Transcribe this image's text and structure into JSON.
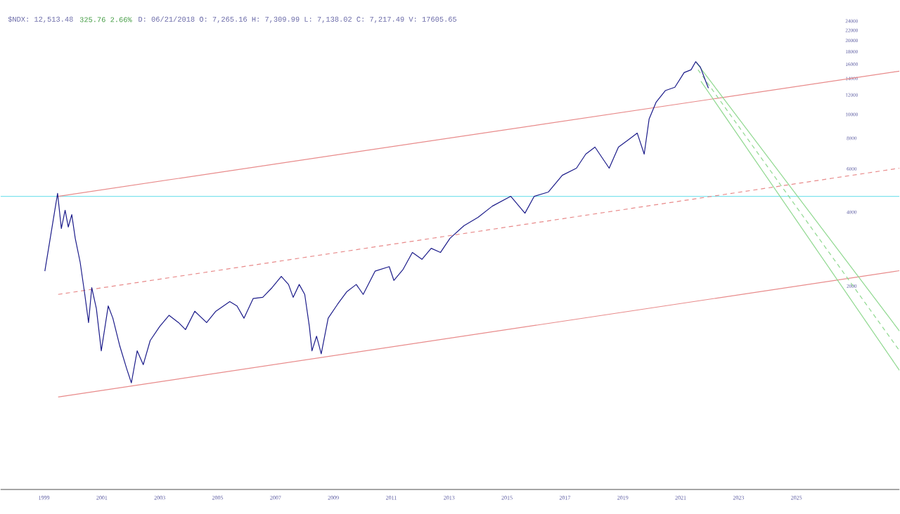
{
  "chart_data": {
    "type": "line",
    "title": "$NDX: 12,513.48",
    "subtitle": "325.76 2.66%",
    "annotations": [
      "D: 06/21/2018 O: 7,265.16 H: 7,309.99 L: 7,138.02 C: 7,217.49 V: 17605.65"
    ],
    "log": true,
    "xlim": [
      1997.5,
      2028.56
    ],
    "ylim": [
      297,
      24000
    ],
    "xticks": [
      1999,
      2001,
      2003,
      2005,
      2007,
      2009,
      2011,
      2013,
      2015,
      2017,
      2019,
      2021,
      2023,
      2025
    ],
    "yticks": [
      2000,
      4000,
      6000,
      8000,
      10000,
      12000,
      14000,
      16000,
      18000,
      20000,
      22000,
      24000
    ],
    "ref_lines": [
      {
        "axis": "y",
        "value": 4640,
        "color": "#7fe3ee"
      }
    ],
    "series": [
      {
        "color": "#e88a8a",
        "x": [
          1999.49,
          2028.56
        ],
        "values": [
          4640,
          15000
        ]
      },
      {
        "color": "#e88a8a",
        "line_style": "dashed",
        "x": [
          1999.49,
          2028.56
        ],
        "values": [
          1850,
          6040
        ]
      },
      {
        "color": "#e88a8a",
        "x": [
          1999.49,
          2028.56
        ],
        "values": [
          707,
          2310
        ]
      },
      {
        "color": "#8fd88f",
        "x": [
          2021.52,
          2028.56
        ],
        "values": [
          16400,
          1313
        ]
      },
      {
        "color": "#8fd88f",
        "line_style": "dashed",
        "x": [
          2021.6,
          2028.56
        ],
        "values": [
          15200,
          1092
        ]
      },
      {
        "color": "#8fd88f",
        "x": [
          2021.7,
          2028.56
        ],
        "values": [
          13650,
          908
        ]
      },
      {
        "color": "#1c1c8a",
        "x": [
          1999.03,
          1999.19,
          1999.47,
          1999.6,
          1999.73,
          1999.84,
          1999.96,
          2000.08,
          2000.25,
          2000.41,
          2000.54,
          2000.65,
          2000.81,
          2000.98,
          2001.22,
          2001.38,
          2001.62,
          2001.86,
          2002.02,
          2002.22,
          2002.43,
          2002.67,
          2003.0,
          2003.32,
          2003.65,
          2003.89,
          2004.21,
          2004.62,
          2004.94,
          2005.42,
          2005.67,
          2005.91,
          2006.23,
          2006.56,
          2006.88,
          2007.2,
          2007.45,
          2007.61,
          2007.82,
          2008.01,
          2008.17,
          2008.26,
          2008.42,
          2008.58,
          2008.82,
          2009.15,
          2009.47,
          2009.79,
          2010.03,
          2010.44,
          2010.93,
          2011.09,
          2011.41,
          2011.73,
          2012.06,
          2012.38,
          2012.7,
          2013.03,
          2013.51,
          2014.0,
          2014.49,
          2015.13,
          2015.62,
          2015.94,
          2016.43,
          2016.91,
          2017.4,
          2017.72,
          2018.04,
          2018.53,
          2018.85,
          2019.18,
          2019.5,
          2019.74,
          2019.91,
          2020.15,
          2020.47,
          2020.8,
          2021.12,
          2021.36,
          2021.52,
          2021.68,
          2021.85,
          2021.96
        ],
        "values": [
          2300,
          3000,
          4770,
          3430,
          4070,
          3480,
          3910,
          3130,
          2500,
          1850,
          1420,
          1970,
          1620,
          1090,
          1660,
          1480,
          1140,
          920,
          807,
          1090,
          957,
          1200,
          1370,
          1520,
          1420,
          1330,
          1580,
          1420,
          1580,
          1730,
          1660,
          1480,
          1780,
          1800,
          1970,
          2190,
          2030,
          1800,
          2030,
          1850,
          1370,
          1090,
          1250,
          1060,
          1480,
          1690,
          1900,
          2030,
          1850,
          2300,
          2400,
          2110,
          2340,
          2740,
          2570,
          2850,
          2740,
          3130,
          3520,
          3810,
          4230,
          4640,
          3960,
          4640,
          4830,
          5650,
          6040,
          6890,
          7360,
          6040,
          7360,
          7860,
          8390,
          6890,
          9570,
          11200,
          12500,
          12900,
          14800,
          15200,
          16400,
          15600,
          13800,
          12800
        ]
      }
    ]
  }
}
